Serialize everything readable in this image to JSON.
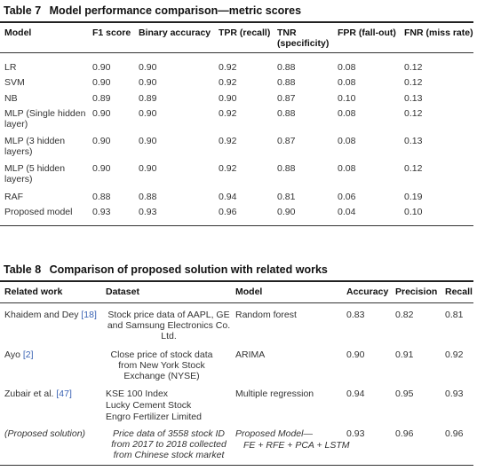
{
  "table7": {
    "label": "Table 7",
    "title": "Model performance comparison—metric scores",
    "headers": [
      "Model",
      "F1 score",
      "Binary accuracy",
      "TPR (recall)",
      "TNR (specificity)",
      "FPR (fall-out)",
      "FNR (miss rate)"
    ],
    "rows": [
      [
        "LR",
        "0.90",
        "0.90",
        "0.92",
        "0.88",
        "0.08",
        "0.12"
      ],
      [
        "SVM",
        "0.90",
        "0.90",
        "0.92",
        "0.88",
        "0.08",
        "0.12"
      ],
      [
        "NB",
        "0.89",
        "0.89",
        "0.90",
        "0.87",
        "0.10",
        "0.13"
      ],
      [
        "MLP (Single hidden layer)",
        "0.90",
        "0.90",
        "0.92",
        "0.88",
        "0.08",
        "0.12"
      ],
      [
        "MLP (3 hidden layers)",
        "0.90",
        "0.90",
        "0.92",
        "0.87",
        "0.08",
        "0.13"
      ],
      [
        "MLP (5 hidden layers)",
        "0.90",
        "0.90",
        "0.92",
        "0.88",
        "0.08",
        "0.12"
      ],
      [
        "RAF",
        "0.88",
        "0.88",
        "0.94",
        "0.81",
        "0.06",
        "0.19"
      ],
      [
        "Proposed model",
        "0.93",
        "0.93",
        "0.96",
        "0.90",
        "0.04",
        "0.10"
      ]
    ]
  },
  "table8": {
    "label": "Table 8",
    "title": "Comparison of proposed solution with related works",
    "headers": [
      "Related work",
      "Dataset",
      "Model",
      "Accuracy",
      "Precision",
      "Recall"
    ],
    "rows": [
      {
        "work": "Khaidem and Dey ",
        "ref": "[18]",
        "dataset": "Stock price data of AAPL, GE and Samsung Electronics Co. Ltd.",
        "model": "Random forest",
        "accuracy": "0.83",
        "precision": "0.82",
        "recall": "0.81"
      },
      {
        "work": "Ayo ",
        "ref": "[2]",
        "dataset": "Close price of stock data from New York Stock Exchange (NYSE)",
        "model": "ARIMA",
        "accuracy": "0.90",
        "precision": "0.91",
        "recall": "0.92"
      },
      {
        "work": "Zubair et al. ",
        "ref": "[47]",
        "dataset_lines": [
          "KSE 100 Index",
          "Lucky Cement Stock",
          "Engro Fertilizer Limited"
        ],
        "model": "Multiple regression",
        "accuracy": "0.94",
        "precision": "0.95",
        "recall": "0.93"
      },
      {
        "work": "(Proposed solution)",
        "ref": "",
        "dataset": "Price data of 3558 stock ID from 2017 to 2018 collected from Chinese stock market",
        "model_lines": [
          "Proposed Model—",
          "FE + RFE + PCA + LSTM"
        ],
        "accuracy": "0.93",
        "precision": "0.96",
        "recall": "0.96"
      }
    ]
  }
}
